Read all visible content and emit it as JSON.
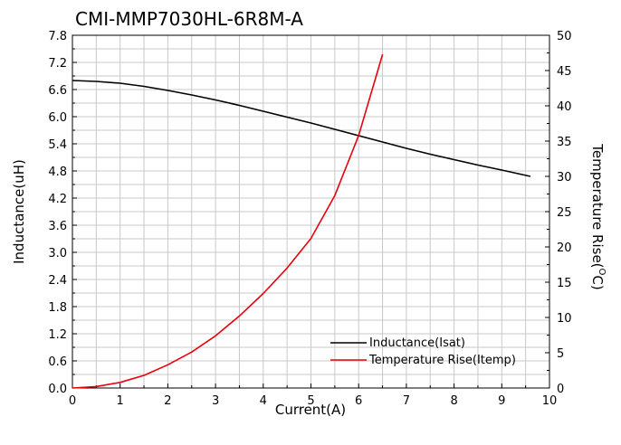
{
  "chart_data": {
    "type": "line",
    "title": "CMI-MMP7030HL-6R8M-A",
    "xlabel": "Current(A)",
    "ylabel": "Inductance(uH)",
    "y2label_main": "Temperature Rise(",
    "y2label_sup": "O",
    "y2label_end": "C)",
    "xlim": [
      0,
      10
    ],
    "ylim": [
      0,
      7.8
    ],
    "y2lim": [
      0,
      50
    ],
    "x_ticks": [
      "0",
      "1",
      "2",
      "3",
      "4",
      "5",
      "6",
      "7",
      "8",
      "9",
      "10"
    ],
    "y_ticks": [
      "0.0",
      "0.6",
      "1.2",
      "1.8",
      "2.4",
      "3.0",
      "3.6",
      "4.2",
      "4.8",
      "5.4",
      "6.0",
      "6.6",
      "7.2",
      "7.8"
    ],
    "y2_ticks": [
      "0",
      "5",
      "10",
      "15",
      "20",
      "25",
      "30",
      "35",
      "40",
      "45",
      "50"
    ],
    "grid": true,
    "legend_position": "bottom-right",
    "series": [
      {
        "name": "Inductance(Isat)",
        "axis": "left",
        "color": "#000000",
        "x": [
          0,
          0.5,
          1,
          1.5,
          2,
          2.5,
          3,
          3.5,
          4,
          4.5,
          5,
          5.5,
          6,
          6.5,
          7,
          7.5,
          8,
          8.5,
          9,
          9.6
        ],
        "y": [
          6.8,
          6.78,
          6.74,
          6.67,
          6.58,
          6.48,
          6.37,
          6.25,
          6.12,
          5.99,
          5.86,
          5.72,
          5.58,
          5.44,
          5.3,
          5.17,
          5.05,
          4.93,
          4.82,
          4.68
        ]
      },
      {
        "name": "Temperature Rise(Itemp)",
        "axis": "right",
        "color": "#e8000b",
        "x": [
          0,
          0.5,
          1,
          1.5,
          2,
          2.5,
          3,
          3.5,
          4,
          4.5,
          5,
          5.5,
          6,
          6.5
        ],
        "y": [
          0,
          0.2,
          0.8,
          1.8,
          3.3,
          5.1,
          7.4,
          10.2,
          13.4,
          17.0,
          21.2,
          27.3,
          35.8,
          47.3
        ]
      }
    ]
  }
}
